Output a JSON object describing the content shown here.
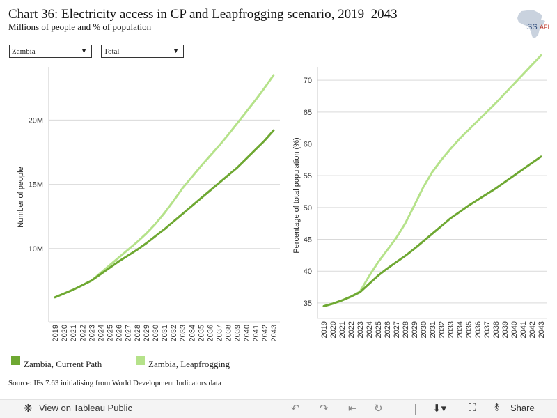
{
  "header": {
    "title": "Chart 36: Electricity access in CP and Leapfrogging scenario, 2019–2043",
    "subtitle": "Millions of people and % of population",
    "logo_text": "ISS",
    "logo_text2": "AFI"
  },
  "filters": {
    "country": "Zambia",
    "group": "Total"
  },
  "legend": [
    {
      "label": "Zambia, Current Path",
      "color": "#6ea832"
    },
    {
      "label": "Zambia, Leapfrogging",
      "color": "#b5e28a"
    }
  ],
  "source": "Source: IFs 7.63 initialising from World Development Indicators data",
  "toolbar": {
    "view_label": "View on Tableau Public",
    "share_label": "Share"
  },
  "chart_data": [
    {
      "type": "line",
      "title": "",
      "xlabel": "",
      "ylabel": "Number of people",
      "x": [
        2019,
        2020,
        2021,
        2022,
        2023,
        2024,
        2025,
        2026,
        2027,
        2028,
        2029,
        2030,
        2031,
        2032,
        2033,
        2034,
        2035,
        2036,
        2037,
        2038,
        2039,
        2040,
        2041,
        2042,
        2043
      ],
      "x_tick_labels": [
        "2019",
        "2020",
        "2021",
        "2022",
        "2023",
        "2024",
        "2025",
        "2026",
        "2027",
        "2028",
        "2029",
        "2030",
        "2031",
        "2032",
        "2033",
        "2034",
        "2035",
        "2036",
        "2037",
        "2038",
        "2039",
        "2040",
        "2041",
        "2042",
        "2043"
      ],
      "ylim": [
        4.4,
        23.6
      ],
      "y_ticks": [
        10,
        15,
        20
      ],
      "y_tick_labels": [
        "10M",
        "15M",
        "20M"
      ],
      "grid": true,
      "series": [
        {
          "name": "Zambia, Current Path",
          "color": "#6ea832",
          "values": [
            6.2,
            6.5,
            6.8,
            7.15,
            7.5,
            8.0,
            8.5,
            9.0,
            9.45,
            9.9,
            10.4,
            10.95,
            11.5,
            12.1,
            12.7,
            13.3,
            13.9,
            14.5,
            15.1,
            15.7,
            16.3,
            17.0,
            17.7,
            18.4,
            19.2
          ]
        },
        {
          "name": "Zambia, Leapfrogging",
          "color": "#b5e28a",
          "values": [
            6.2,
            6.5,
            6.8,
            7.15,
            7.5,
            8.1,
            8.7,
            9.3,
            9.9,
            10.5,
            11.15,
            11.9,
            12.75,
            13.7,
            14.7,
            15.55,
            16.4,
            17.2,
            18.0,
            18.85,
            19.75,
            20.65,
            21.55,
            22.5,
            23.5
          ]
        }
      ]
    },
    {
      "type": "line",
      "title": "",
      "xlabel": "",
      "ylabel": "Percentage of total population (%)",
      "x": [
        2019,
        2020,
        2021,
        2022,
        2023,
        2024,
        2025,
        2026,
        2027,
        2028,
        2029,
        2030,
        2031,
        2032,
        2033,
        2034,
        2035,
        2036,
        2037,
        2038,
        2039,
        2040,
        2041,
        2042,
        2043
      ],
      "x_tick_labels": [
        "2019",
        "2020",
        "2021",
        "2022",
        "2023",
        "2024",
        "2025",
        "2026",
        "2027",
        "2028",
        "2029",
        "2030",
        "2031",
        "2032",
        "2033",
        "2034",
        "2035",
        "2036",
        "2037",
        "2038",
        "2039",
        "2040",
        "2041",
        "2042",
        "2043"
      ],
      "ylim": [
        32.8,
        71.0
      ],
      "y_ticks": [
        35,
        40,
        45,
        50,
        55,
        60,
        65,
        70
      ],
      "y_tick_labels": [
        "35",
        "40",
        "45",
        "50",
        "55",
        "60",
        "65",
        "70"
      ],
      "grid": true,
      "series": [
        {
          "name": "Zambia, Current Path",
          "color": "#6ea832",
          "values": [
            34.5,
            34.9,
            35.4,
            36.0,
            36.7,
            38.0,
            39.3,
            40.4,
            41.4,
            42.4,
            43.5,
            44.7,
            45.9,
            47.1,
            48.3,
            49.3,
            50.3,
            51.2,
            52.1,
            53.0,
            54.0,
            55.0,
            56.0,
            57.0,
            58.0
          ]
        },
        {
          "name": "Zambia, Leapfrogging",
          "color": "#b5e28a",
          "values": [
            34.5,
            34.9,
            35.4,
            36.0,
            36.8,
            39.2,
            41.4,
            43.3,
            45.2,
            47.5,
            50.3,
            53.2,
            55.6,
            57.5,
            59.2,
            60.8,
            62.2,
            63.6,
            65.0,
            66.4,
            67.9,
            69.4,
            70.9,
            72.4,
            73.9
          ]
        }
      ]
    }
  ]
}
